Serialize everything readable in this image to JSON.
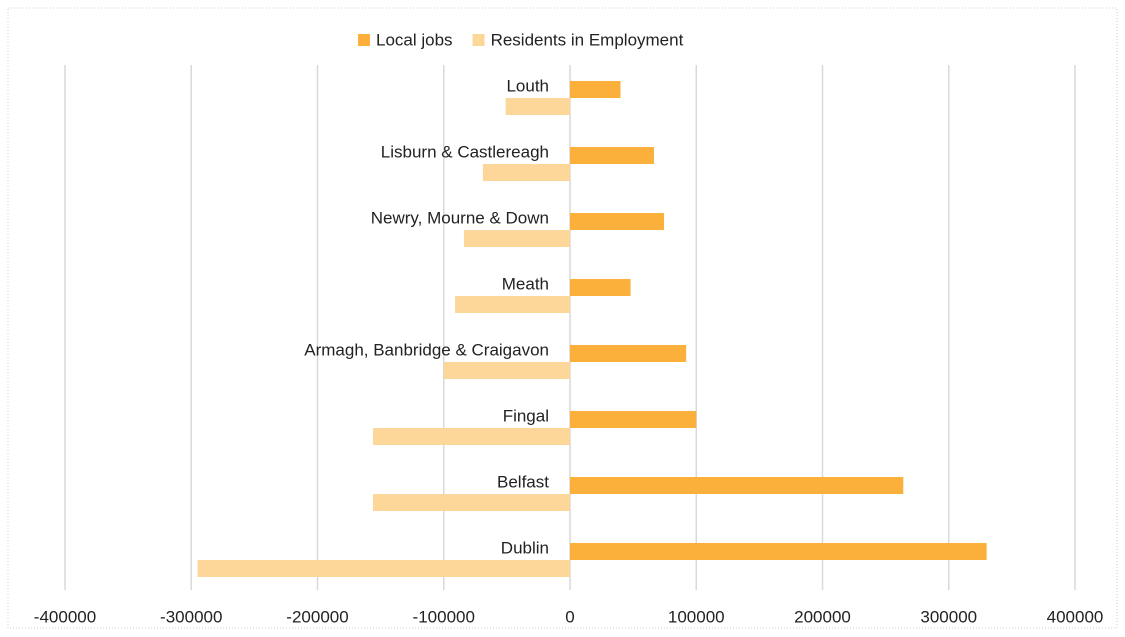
{
  "chart_data": {
    "type": "bar",
    "orientation": "horizontal",
    "categories": [
      "Louth",
      "Lisburn & Castlereagh",
      "Newry, Mourne & Down",
      "Meath",
      "Armagh, Banbridge & Craigavon",
      "Fingal",
      "Belfast",
      "Dublin"
    ],
    "series": [
      {
        "name": "Local jobs",
        "color": "#fbb03b",
        "values": [
          40000,
          66500,
          74500,
          48000,
          92000,
          100000,
          264000,
          330000
        ]
      },
      {
        "name": "Residents in Employment",
        "color": "#fdd699",
        "values": [
          -51000,
          -69000,
          -84000,
          -91000,
          -100000,
          -156000,
          -156000,
          -295000
        ]
      }
    ],
    "xlim": [
      -400000,
      400000
    ],
    "xticks": [
      -400000,
      -300000,
      -200000,
      -100000,
      0,
      100000,
      200000,
      300000,
      400000
    ],
    "grid": true,
    "legend": "top"
  }
}
